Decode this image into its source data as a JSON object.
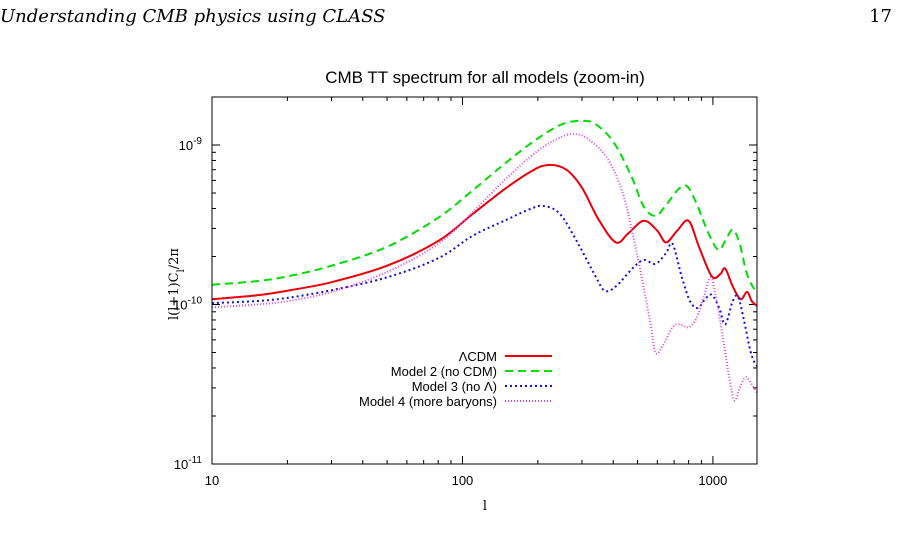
{
  "page": {
    "running_head": "Understanding CMB physics using CLASS",
    "page_number": "17"
  },
  "chart_data": {
    "type": "line",
    "title": "CMB TT spectrum for all models (zoom-in)",
    "xlabel": "l",
    "ylabel": "l(l+1)C_l/2π",
    "xscale": "log",
    "yscale": "log",
    "xlim": [
      10,
      1500
    ],
    "ylim": [
      1e-11,
      2e-09
    ],
    "x_ticks": [
      {
        "value": 10,
        "label": "10"
      },
      {
        "value": 100,
        "label": "100"
      },
      {
        "value": 1000,
        "label": "1000"
      }
    ],
    "y_ticks": [
      {
        "value": 1e-11,
        "label": "10",
        "exp": "-11"
      },
      {
        "value": 1e-10,
        "label": "10",
        "exp": "-10"
      },
      {
        "value": 1e-09,
        "label": "10",
        "exp": "-9"
      }
    ],
    "grid": false,
    "legend_position": "center-left",
    "series": [
      {
        "name": "ΛCDM",
        "color": "#e8000b",
        "dash": "solid",
        "points": [
          [
            10,
            1.08e-10
          ],
          [
            15,
            1.14e-10
          ],
          [
            20,
            1.22e-10
          ],
          [
            30,
            1.38e-10
          ],
          [
            50,
            1.75e-10
          ],
          [
            80,
            2.5e-10
          ],
          [
            110,
            3.7e-10
          ],
          [
            150,
            5.4e-10
          ],
          [
            190,
            6.9e-10
          ],
          [
            220,
            7.5e-10
          ],
          [
            260,
            7e-10
          ],
          [
            300,
            5.4e-10
          ],
          [
            350,
            3.4e-10
          ],
          [
            410,
            2.45e-10
          ],
          [
            460,
            2.8e-10
          ],
          [
            530,
            3.35e-10
          ],
          [
            600,
            2.9e-10
          ],
          [
            650,
            2.45e-10
          ],
          [
            720,
            2.9e-10
          ],
          [
            800,
            3.35e-10
          ],
          [
            880,
            2.3e-10
          ],
          [
            990,
            1.5e-10
          ],
          [
            1070,
            1.55e-10
          ],
          [
            1120,
            1.68e-10
          ],
          [
            1200,
            1.3e-10
          ],
          [
            1290,
            1.08e-10
          ],
          [
            1370,
            1.2e-10
          ],
          [
            1430,
            1.05e-10
          ],
          [
            1500,
            9.8e-11
          ]
        ]
      },
      {
        "name": "Model 2 (no CDM)",
        "color": "#00dd00",
        "dash": "8,5",
        "points": [
          [
            10,
            1.33e-10
          ],
          [
            15,
            1.4e-10
          ],
          [
            20,
            1.5e-10
          ],
          [
            30,
            1.75e-10
          ],
          [
            50,
            2.3e-10
          ],
          [
            80,
            3.5e-10
          ],
          [
            110,
            5.2e-10
          ],
          [
            150,
            7.8e-10
          ],
          [
            200,
            1.1e-09
          ],
          [
            250,
            1.35e-09
          ],
          [
            300,
            1.42e-09
          ],
          [
            340,
            1.35e-09
          ],
          [
            400,
            1.05e-09
          ],
          [
            470,
            6.5e-10
          ],
          [
            530,
            4.1e-10
          ],
          [
            590,
            3.6e-10
          ],
          [
            650,
            4.2e-10
          ],
          [
            730,
            5.3e-10
          ],
          [
            790,
            5.5e-10
          ],
          [
            860,
            4.3e-10
          ],
          [
            960,
            2.8e-10
          ],
          [
            1050,
            2.2e-10
          ],
          [
            1120,
            2.5e-10
          ],
          [
            1200,
            2.95e-10
          ],
          [
            1280,
            2.4e-10
          ],
          [
            1360,
            1.6e-10
          ],
          [
            1440,
            1.3e-10
          ],
          [
            1500,
            1.2e-10
          ]
        ]
      },
      {
        "name": "Model 3 (no Λ)",
        "color": "#1010e0",
        "dash": "2,3",
        "points": [
          [
            10,
            1.02e-10
          ],
          [
            15,
            1.05e-10
          ],
          [
            20,
            1.1e-10
          ],
          [
            30,
            1.23e-10
          ],
          [
            50,
            1.48e-10
          ],
          [
            80,
            1.95e-10
          ],
          [
            110,
            2.7e-10
          ],
          [
            150,
            3.4e-10
          ],
          [
            185,
            3.95e-10
          ],
          [
            210,
            4.15e-10
          ],
          [
            245,
            3.7e-10
          ],
          [
            290,
            2.4e-10
          ],
          [
            340,
            1.5e-10
          ],
          [
            370,
            1.22e-10
          ],
          [
            410,
            1.3e-10
          ],
          [
            480,
            1.7e-10
          ],
          [
            530,
            1.9e-10
          ],
          [
            590,
            1.8e-10
          ],
          [
            650,
            2.1e-10
          ],
          [
            690,
            2.4e-10
          ],
          [
            750,
            1.5e-10
          ],
          [
            810,
            1.05e-10
          ],
          [
            870,
            9.5e-11
          ],
          [
            930,
            1.08e-10
          ],
          [
            990,
            1.15e-10
          ],
          [
            1060,
            9.5e-11
          ],
          [
            1120,
            7.5e-11
          ],
          [
            1200,
            1.05e-10
          ],
          [
            1260,
            1.12e-10
          ],
          [
            1330,
            8e-11
          ],
          [
            1400,
            5.4e-11
          ],
          [
            1450,
            4.5e-11
          ],
          [
            1500,
            4.1e-11
          ]
        ]
      },
      {
        "name": "Model 4 (more baryons)",
        "color": "#e040e0",
        "dash": "1,2",
        "points": [
          [
            10,
            9.6e-11
          ],
          [
            15,
            1e-10
          ],
          [
            20,
            1.05e-10
          ],
          [
            30,
            1.2e-10
          ],
          [
            50,
            1.6e-10
          ],
          [
            80,
            2.4e-10
          ],
          [
            110,
            3.8e-10
          ],
          [
            150,
            6.2e-10
          ],
          [
            200,
            9.2e-10
          ],
          [
            250,
            1.13e-09
          ],
          [
            285,
            1.17e-09
          ],
          [
            320,
            1.08e-09
          ],
          [
            380,
            8.2e-10
          ],
          [
            440,
            4.8e-10
          ],
          [
            500,
            2e-10
          ],
          [
            560,
            8e-11
          ],
          [
            590,
            5e-11
          ],
          [
            630,
            5.5e-11
          ],
          [
            690,
            7.2e-11
          ],
          [
            740,
            7.5e-11
          ],
          [
            800,
            7.2e-11
          ],
          [
            860,
            8.2e-11
          ],
          [
            920,
            1.12e-10
          ],
          [
            980,
            1.48e-10
          ],
          [
            1030,
            1.1e-10
          ],
          [
            1100,
            6e-11
          ],
          [
            1170,
            3.3e-11
          ],
          [
            1220,
            2.5e-11
          ],
          [
            1280,
            3e-11
          ],
          [
            1350,
            3.5e-11
          ],
          [
            1420,
            3.2e-11
          ],
          [
            1500,
            2.8e-11
          ]
        ]
      }
    ]
  }
}
